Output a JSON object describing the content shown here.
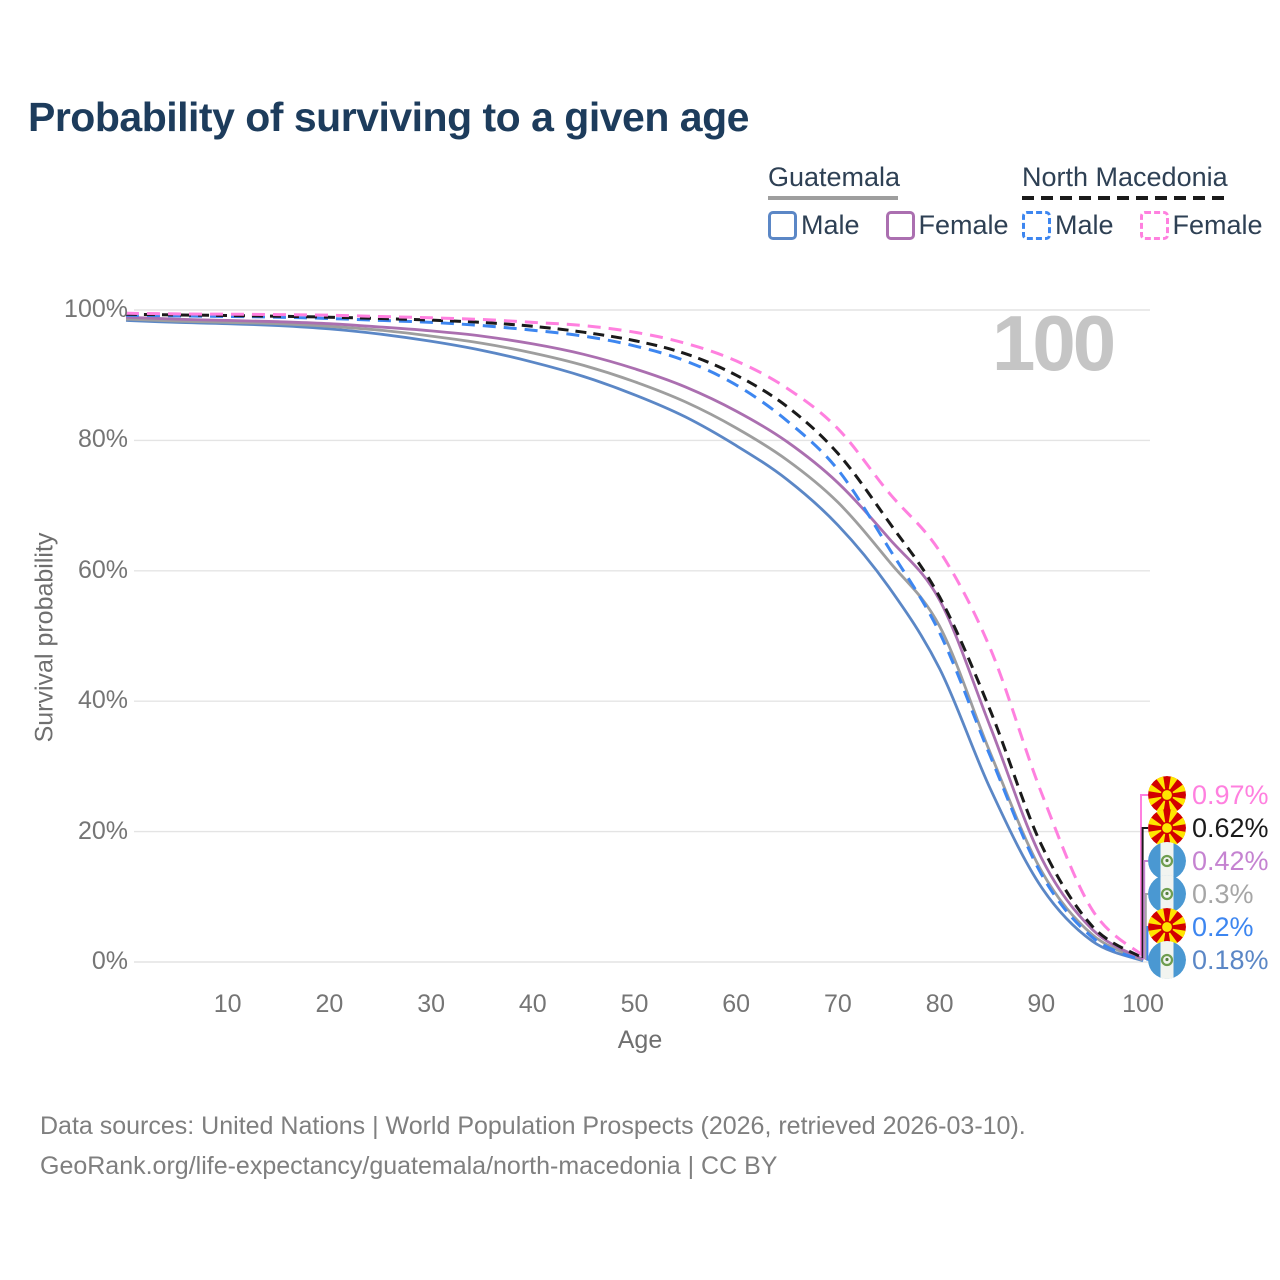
{
  "title": "Probability of surviving to a given age",
  "watermark": "100",
  "legend": {
    "groups": [
      {
        "country": "Guatemala",
        "line_style": "solid",
        "underline_color": "#9e9e9e",
        "items": [
          {
            "label": "Male",
            "color": "#5b87c6",
            "dashed": false
          },
          {
            "label": "Female",
            "color": "#ab6fb0",
            "dashed": false
          }
        ]
      },
      {
        "country": "North Macedonia",
        "line_style": "dashed",
        "underline_color": "#1a1a1a",
        "items": [
          {
            "label": "Male",
            "color": "#3d86f0",
            "dashed": true
          },
          {
            "label": "Female",
            "color": "#ff80df",
            "dashed": true
          }
        ]
      }
    ]
  },
  "chart_data": {
    "type": "line",
    "title": "Probability of surviving to a given age",
    "xlabel": "Age",
    "ylabel": "Survival probability",
    "xlim": [
      0,
      100
    ],
    "ylim": [
      0,
      100
    ],
    "grid": "horizontal",
    "x_ticks": [
      10,
      20,
      30,
      40,
      50,
      60,
      70,
      80,
      90,
      100
    ],
    "y_ticks": [
      0,
      20,
      40,
      60,
      80,
      100
    ],
    "y_tick_labels": [
      "0%",
      "20%",
      "40%",
      "60%",
      "80%",
      "100%"
    ],
    "x": [
      0,
      5,
      10,
      15,
      20,
      25,
      30,
      35,
      40,
      45,
      50,
      55,
      60,
      65,
      70,
      75,
      80,
      85,
      90,
      95,
      100
    ],
    "series": [
      {
        "name": "Guatemala — Male",
        "country": "Guatemala",
        "sex": "Male",
        "color": "#5b87c6",
        "dashed": false,
        "values": [
          98.4,
          98.1,
          97.9,
          97.6,
          97.1,
          96.3,
          95.2,
          93.8,
          92.0,
          89.8,
          87.0,
          83.6,
          79.2,
          74.0,
          67.0,
          57.5,
          45.0,
          26.5,
          11.5,
          3.2,
          0.18
        ]
      },
      {
        "name": "Guatemala — Total",
        "country": "Guatemala",
        "sex": "Total",
        "color": "#9e9e9e",
        "dashed": false,
        "values": [
          98.6,
          98.3,
          98.1,
          97.9,
          97.5,
          96.9,
          96.0,
          94.9,
          93.4,
          91.5,
          89.0,
          85.9,
          81.9,
          77.0,
          70.5,
          61.5,
          51.5,
          32.0,
          14.0,
          4.2,
          0.3
        ]
      },
      {
        "name": "Guatemala — Female",
        "country": "Guatemala",
        "sex": "Female",
        "color": "#ab6fb0",
        "dashed": false,
        "values": [
          98.9,
          98.6,
          98.4,
          98.2,
          97.9,
          97.4,
          96.8,
          96.0,
          94.8,
          93.2,
          91.0,
          88.2,
          84.5,
          79.8,
          73.5,
          65.0,
          55.5,
          36.0,
          16.0,
          5.0,
          0.42
        ]
      },
      {
        "name": "North Macedonia — Male",
        "country": "North Macedonia",
        "sex": "Male",
        "color": "#3d86f0",
        "dashed": true,
        "values": [
          99.2,
          99.1,
          99.0,
          98.9,
          98.7,
          98.4,
          98.1,
          97.6,
          96.9,
          96.0,
          94.5,
          92.2,
          88.5,
          83.0,
          75.5,
          63.5,
          50.5,
          31.5,
          13.5,
          3.8,
          0.2
        ]
      },
      {
        "name": "North Macedonia — Total",
        "country": "North Macedonia",
        "sex": "Total",
        "color": "#1a1a1a",
        "dashed": true,
        "values": [
          99.35,
          99.25,
          99.15,
          99.05,
          98.9,
          98.7,
          98.45,
          98.1,
          97.5,
          96.6,
          95.3,
          93.3,
          90.0,
          85.2,
          78.0,
          67.5,
          56.0,
          38.5,
          18.0,
          5.5,
          0.62
        ]
      },
      {
        "name": "North Macedonia — Female",
        "country": "North Macedonia",
        "sex": "Female",
        "color": "#ff80df",
        "dashed": true,
        "values": [
          99.5,
          99.4,
          99.35,
          99.3,
          99.2,
          99.0,
          98.8,
          98.55,
          98.1,
          97.6,
          96.6,
          94.9,
          92.2,
          88.0,
          81.8,
          72.0,
          63.0,
          48.0,
          26.0,
          8.0,
          0.97
        ]
      }
    ]
  },
  "end_labels": [
    {
      "value": "0.97%",
      "percent": 0.97,
      "flag": "north-macedonia",
      "color": "#ff80df"
    },
    {
      "value": "0.62%",
      "percent": 0.62,
      "flag": "north-macedonia",
      "color": "#1a1a1a"
    },
    {
      "value": "0.42%",
      "percent": 0.42,
      "flag": "guatemala",
      "color": "#c583d1"
    },
    {
      "value": "0.3%",
      "percent": 0.3,
      "flag": "guatemala",
      "color": "#a6a6a6"
    },
    {
      "value": "0.2%",
      "percent": 0.2,
      "flag": "north-macedonia",
      "color": "#3d86f0"
    },
    {
      "value": "0.18%",
      "percent": 0.18,
      "flag": "guatemala",
      "color": "#5b87c6"
    }
  ],
  "footer": {
    "line1": "Data sources: United Nations | World Population Prospects (2026, retrieved 2026-03-10).",
    "line2": "GeoRank.org/life-expectancy/guatemala/north-macedonia | CC BY"
  }
}
